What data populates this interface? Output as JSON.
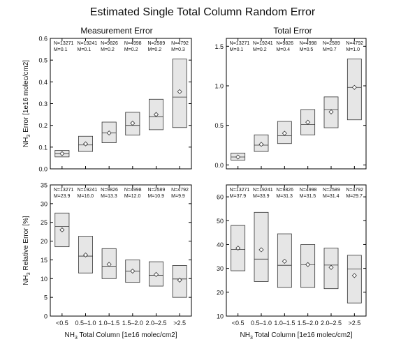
{
  "figure_title": "Estimated Single Total Column Random Error",
  "colors": {
    "box_fill": "#e6e6e6",
    "box_stroke": "#333333",
    "axis": "#000000"
  },
  "chart_data": [
    {
      "type": "box",
      "title": "Measurement Error",
      "ylabel_main": "NH",
      "ylabel_sub": "3",
      "ylabel_rest": " Error [1e16 molec/cm2]",
      "xlabel": "",
      "ylim": [
        0,
        0.6
      ],
      "yticks": [
        "0.0",
        "0.1",
        "0.2",
        "0.3",
        "0.4",
        "0.5",
        "0.6"
      ],
      "categories": [
        "<0.5",
        "0.5–1.0",
        "1.0–1.5",
        "1.5–2.0",
        "2.0–2.5",
        ">2.5"
      ],
      "show_xtick_labels": false,
      "counts": [
        "N=13271",
        "N=19241",
        "N=9826",
        "N=4998",
        "N=2589",
        "N=4792"
      ],
      "medians_label": [
        "M=0.1",
        "M=0.1",
        "M=0.2",
        "M=0.2",
        "M=0.2",
        "M=0.3"
      ],
      "q1": [
        0.055,
        0.08,
        0.12,
        0.155,
        0.18,
        0.19
      ],
      "median": [
        0.07,
        0.11,
        0.165,
        0.2,
        0.24,
        0.33
      ],
      "q3": [
        0.085,
        0.15,
        0.215,
        0.26,
        0.32,
        0.505
      ],
      "mean": [
        0.07,
        0.115,
        0.165,
        0.21,
        0.25,
        0.355
      ]
    },
    {
      "type": "box",
      "title": "Total Error",
      "ylabel_main": "",
      "ylabel_sub": "",
      "ylabel_rest": "",
      "xlabel": "",
      "ylim": [
        -0.05,
        1.6
      ],
      "yticks": [
        "0.0",
        "0.5",
        "1.0",
        "1.5"
      ],
      "ytick_values": [
        0.0,
        0.5,
        1.0,
        1.5
      ],
      "categories": [
        "<0.5",
        "0.5–1.0",
        "1.0–1.5",
        "1.5–2.0",
        "2.0–2.5",
        ">2.5"
      ],
      "show_xtick_labels": false,
      "counts": [
        "N=13271",
        "N=19241",
        "N=9826",
        "N=4998",
        "N=2589",
        "N=4792"
      ],
      "medians_label": [
        "M=0.1",
        "M=0.2",
        "M=0.4",
        "M=0.5",
        "M=0.7",
        "M=1.0"
      ],
      "q1": [
        0.06,
        0.17,
        0.27,
        0.38,
        0.47,
        0.57
      ],
      "median": [
        0.1,
        0.25,
        0.37,
        0.51,
        0.7,
        0.98
      ],
      "q3": [
        0.15,
        0.38,
        0.55,
        0.7,
        0.86,
        1.34
      ],
      "mean": [
        0.1,
        0.26,
        0.4,
        0.54,
        0.67,
        0.98
      ]
    },
    {
      "type": "box",
      "title": "",
      "ylabel_main": "NH",
      "ylabel_sub": "3",
      "ylabel_rest": " Relative Error [%]",
      "xlabel_main": "NH",
      "xlabel_sub": "3",
      "xlabel_rest": " Total Column [1e16 molec/cm2]",
      "ylim": [
        0,
        35
      ],
      "yticks": [
        "0",
        "5",
        "10",
        "15",
        "20",
        "25",
        "30",
        "35"
      ],
      "categories": [
        "<0.5",
        "0.5–1.0",
        "1.0–1.5",
        "1.5–2.0",
        "2.0–2.5",
        ">2.5"
      ],
      "show_xtick_labels": true,
      "counts": [
        "N=13271",
        "N=19241",
        "N=9826",
        "N=4998",
        "N=2589",
        "N=4792"
      ],
      "medians_label": [
        "M=23.9",
        "M=16.0",
        "M=13.3",
        "M=12.0",
        "M=10.9",
        "M=9.9"
      ],
      "q1": [
        18.5,
        11.5,
        10.0,
        9.0,
        8.0,
        5.0
      ],
      "median": [
        23.9,
        16.0,
        13.3,
        12.0,
        10.9,
        9.9
      ],
      "q3": [
        27.5,
        21.3,
        18.0,
        15.0,
        14.5,
        13.5
      ],
      "mean": [
        23.0,
        16.3,
        13.8,
        12.0,
        11.1,
        9.6
      ]
    },
    {
      "type": "box",
      "title": "",
      "ylabel_main": "",
      "ylabel_sub": "",
      "ylabel_rest": "",
      "xlabel_main": "NH",
      "xlabel_sub": "3",
      "xlabel_rest": " Total Column [1e16 molec/cm2]",
      "ylim": [
        10,
        65
      ],
      "yticks": [
        "10",
        "20",
        "30",
        "40",
        "50",
        "60"
      ],
      "categories": [
        "<0.5",
        "0.5–1.0",
        "1.0–1.5",
        "1.5–2.0",
        "2.0–2.5",
        ">2.5"
      ],
      "show_xtick_labels": true,
      "counts": [
        "N=13271",
        "N=19241",
        "N=9826",
        "N=4998",
        "N=2589",
        "N=4792"
      ],
      "medians_label": [
        "M=37.9",
        "M=33.9",
        "M=31.3",
        "M=31.5",
        "M=31.4",
        "M=29.7"
      ],
      "q1": [
        29.0,
        24.5,
        22.0,
        22.0,
        21.5,
        15.5
      ],
      "median": [
        37.9,
        33.9,
        31.3,
        31.5,
        31.4,
        29.7
      ],
      "q3": [
        48.0,
        53.5,
        44.5,
        40.0,
        38.5,
        35.5
      ],
      "mean": [
        38.5,
        37.8,
        33.0,
        31.6,
        30.4,
        27.0
      ]
    }
  ]
}
